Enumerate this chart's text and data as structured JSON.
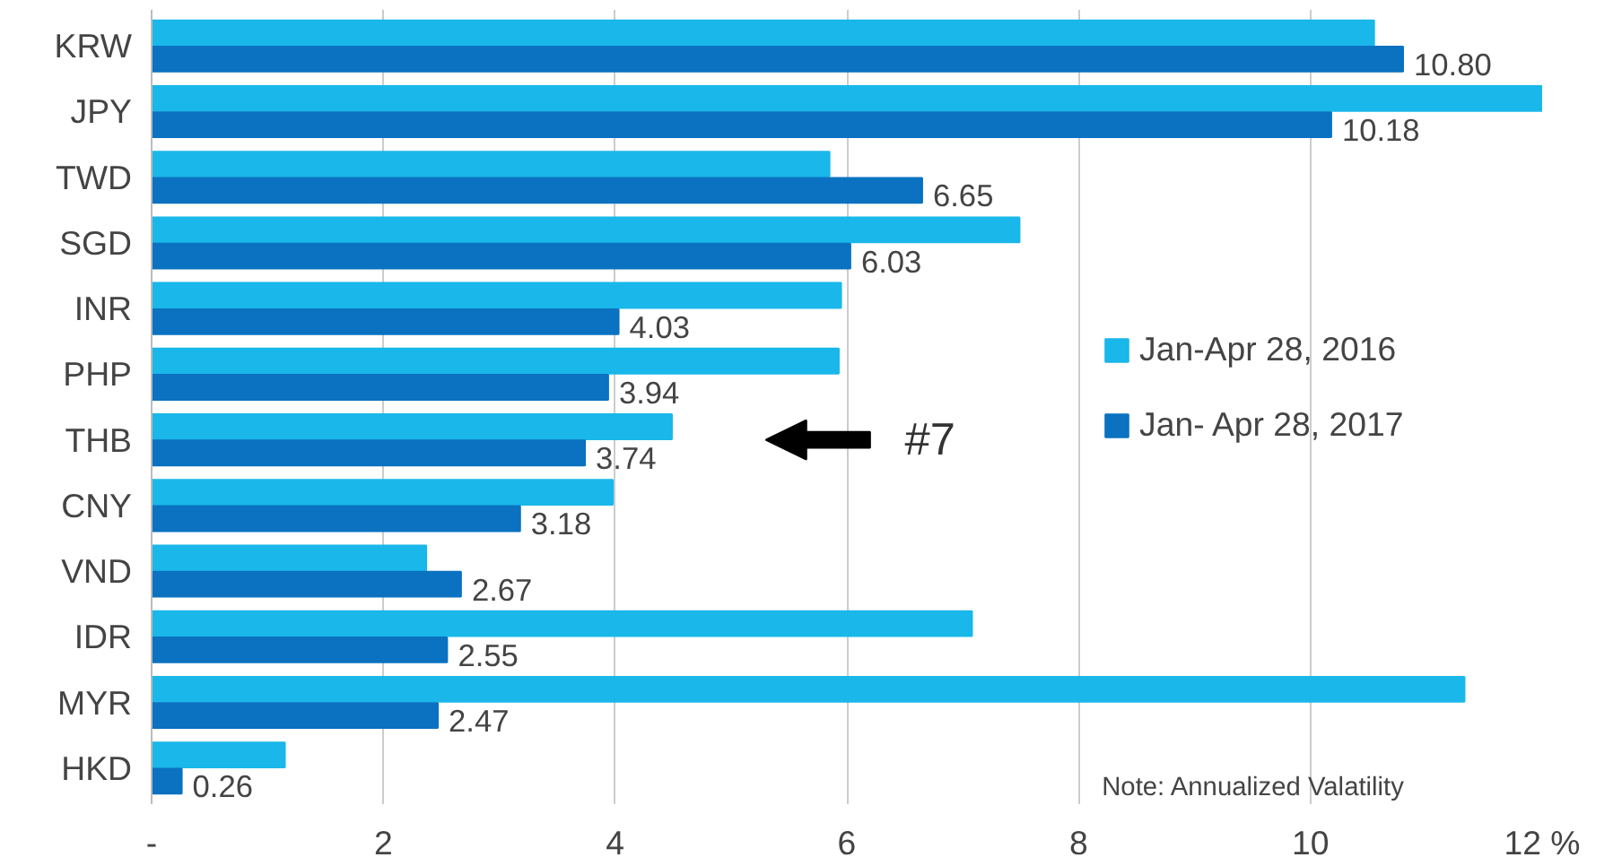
{
  "chart_data": {
    "type": "bar",
    "orientation": "horizontal",
    "categories": [
      "KRW",
      "JPY",
      "TWD",
      "SGD",
      "INR",
      "PHP",
      "THB",
      "CNY",
      "VND",
      "IDR",
      "MYR",
      "HKD"
    ],
    "series": [
      {
        "name": "Jan-Apr 28, 2016",
        "color": "#1ab7ea",
        "values": [
          10.55,
          12.0,
          5.85,
          7.49,
          5.95,
          5.93,
          4.49,
          3.98,
          2.37,
          7.08,
          11.33,
          1.15
        ]
      },
      {
        "name": "Jan- Apr 28, 2017",
        "color": "#0a72c0",
        "values": [
          10.8,
          10.18,
          6.65,
          6.03,
          4.03,
          3.94,
          3.74,
          3.18,
          2.67,
          2.55,
          2.47,
          0.26
        ],
        "value_labels": [
          "10.80",
          "10.18",
          "6.65",
          "6.03",
          "4.03",
          "3.94",
          "3.74",
          "3.18",
          "2.67",
          "2.55",
          "2.47",
          "0.26"
        ]
      }
    ],
    "xlim": [
      0,
      12
    ],
    "xticks": [
      {
        "value": 0,
        "label": "-"
      },
      2,
      4,
      6,
      8,
      10,
      {
        "value": 12,
        "label": "12 %"
      }
    ],
    "grid": "x",
    "legend": "right",
    "annotations": [
      "#7",
      "Note: Annualized Valatility"
    ]
  }
}
